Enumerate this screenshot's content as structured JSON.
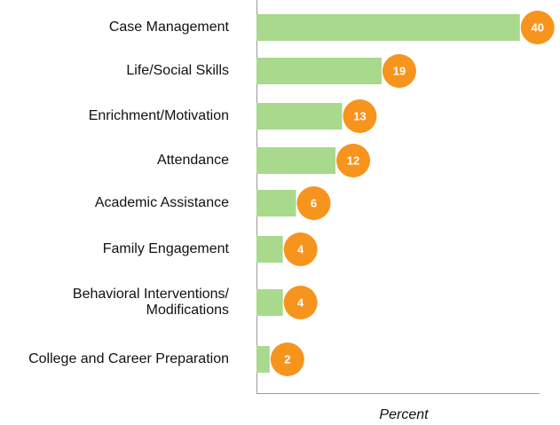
{
  "chart_data": {
    "type": "bar",
    "orientation": "horizontal",
    "categories": [
      "Case Management",
      "Life/Social Skills",
      "Enrichment/Motivation",
      "Attendance",
      "Academic Assistance",
      "Family Engagement",
      "Behavioral Interventions/\nModifications",
      "College and Career Preparation"
    ],
    "values": [
      40,
      19,
      13,
      12,
      6,
      4,
      4,
      2
    ],
    "color": "#a8d98c",
    "label_color": "#f7941d",
    "x_label": "Percent",
    "xlim": [
      0,
      43
    ]
  }
}
